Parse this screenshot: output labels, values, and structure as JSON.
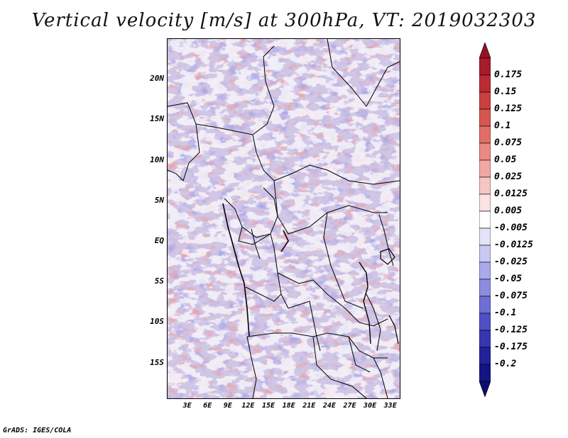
{
  "title": "Vertical velocity [m/s] at 300hPa, VT: 2019032303",
  "map": {
    "lat_labels": [
      "20N",
      "15N",
      "10N",
      "5N",
      "EQ",
      "5S",
      "10S",
      "15S"
    ],
    "lat_values": [
      20,
      15,
      10,
      5,
      0,
      -5,
      -10,
      -15
    ],
    "lon_labels": [
      "3E",
      "6E",
      "9E",
      "12E",
      "15E",
      "18E",
      "21E",
      "24E",
      "27E",
      "30E",
      "33E"
    ],
    "lon_values": [
      3,
      6,
      9,
      12,
      15,
      18,
      21,
      24,
      27,
      30,
      33
    ],
    "lon_range": [
      0,
      34.5
    ],
    "lat_range": [
      -19.5,
      25
    ]
  },
  "colorbar": {
    "labels": [
      "0.175",
      "0.15",
      "0.125",
      "0.1",
      "0.075",
      "0.05",
      "0.025",
      "0.0125",
      "0.005",
      "-0.005",
      "-0.0125",
      "-0.025",
      "-0.05",
      "-0.075",
      "-0.1",
      "-0.125",
      "-0.175",
      "-0.2"
    ],
    "colors": [
      "#a81b2a",
      "#bb2b33",
      "#cc3f3f",
      "#d95550",
      "#e26e68",
      "#ea8a84",
      "#f1a8a2",
      "#f6c6c2",
      "#fbe3e1",
      "#ffffff",
      "#e3e3fa",
      "#c8c8f3",
      "#aaaaeb",
      "#8c8ce0",
      "#6e6ed4",
      "#5050c4",
      "#3636b0",
      "#22229a",
      "#141487"
    ],
    "top_color": "#951220",
    "bottom_color": "#0c0c70"
  },
  "footer": "GrADS: IGES/COLA"
}
